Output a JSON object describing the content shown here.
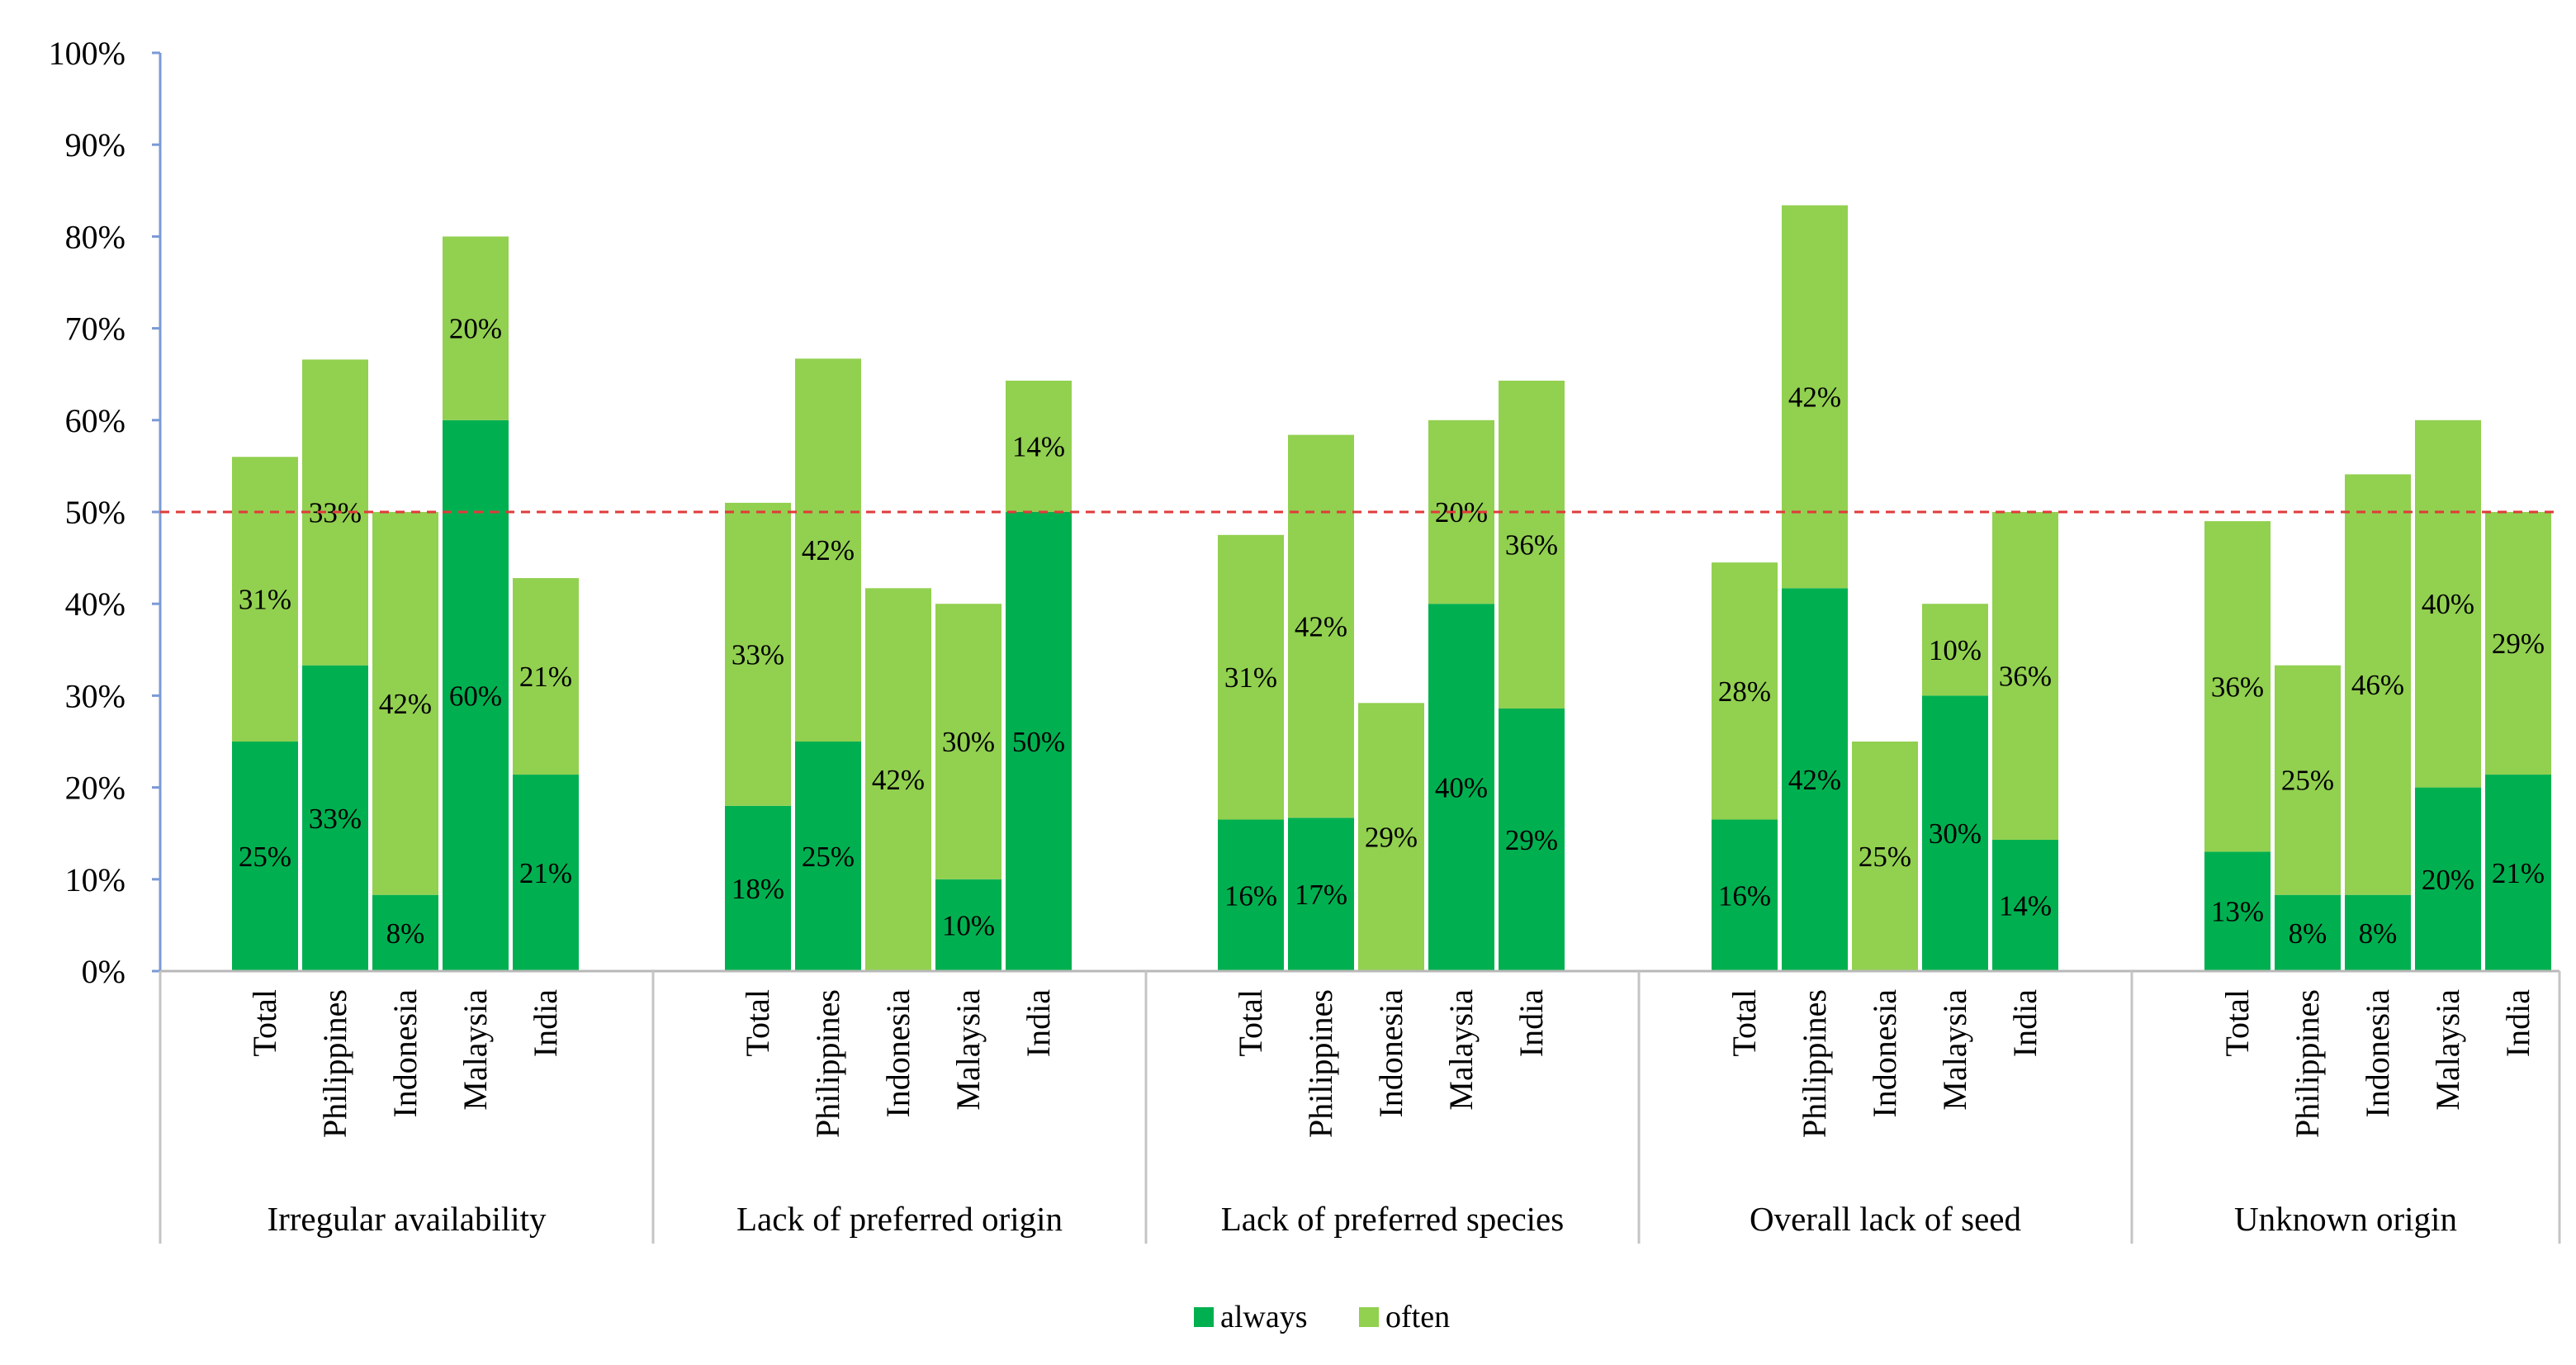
{
  "chart_data": {
    "type": "bar",
    "stacked": true,
    "ylim": [
      0,
      100
    ],
    "yticks": [
      "0%",
      "10%",
      "20%",
      "30%",
      "40%",
      "50%",
      "60%",
      "70%",
      "80%",
      "90%",
      "100%"
    ],
    "reference_line": {
      "value": 50,
      "style": "dashed",
      "color": "#e03a3a"
    },
    "colors": {
      "always": "#00b050",
      "often": "#92d050"
    },
    "legend": {
      "position": "bottom",
      "entries": [
        "always",
        "often"
      ]
    },
    "groups": [
      {
        "name": "Irregular availability",
        "categories": [
          "Total",
          "Philippines",
          "Indonesia",
          "Malaysia",
          "India"
        ],
        "always": [
          25,
          33.3,
          8.3,
          60,
          21.4
        ],
        "often": [
          31,
          33.3,
          41.7,
          20,
          21.4
        ],
        "always_labels": [
          "25%",
          "33%",
          "8%",
          "60%",
          "21%"
        ],
        "often_labels": [
          "31%",
          "33%",
          "42%",
          "20%",
          "21%"
        ]
      },
      {
        "name": "Lack of preferred origin",
        "categories": [
          "Total",
          "Philippines",
          "Indonesia",
          "Malaysia",
          "India"
        ],
        "always": [
          18,
          25,
          0,
          10,
          50
        ],
        "often": [
          33,
          41.7,
          41.7,
          30,
          14.3
        ],
        "always_labels": [
          "18%",
          "25%",
          "",
          "10%",
          "50%"
        ],
        "often_labels": [
          "33%",
          "42%",
          "42%",
          "30%",
          "14%"
        ]
      },
      {
        "name": "Lack of preferred species",
        "categories": [
          "Total",
          "Philippines",
          "Indonesia",
          "Malaysia",
          "India"
        ],
        "always": [
          16.5,
          16.7,
          0,
          40,
          28.6
        ],
        "often": [
          31,
          41.7,
          29.2,
          20,
          35.7
        ],
        "always_labels": [
          "16%",
          "17%",
          "",
          "40%",
          "29%"
        ],
        "often_labels": [
          "31%",
          "42%",
          "29%",
          "20%",
          "36%"
        ]
      },
      {
        "name": "Overall lack of seed",
        "categories": [
          "Total",
          "Philippines",
          "Indonesia",
          "Malaysia",
          "India"
        ],
        "always": [
          16.5,
          41.7,
          0,
          30,
          14.3
        ],
        "often": [
          28,
          41.7,
          25,
          10,
          35.7
        ],
        "always_labels": [
          "16%",
          "42%",
          "",
          "30%",
          "14%"
        ],
        "often_labels": [
          "28%",
          "42%",
          "25%",
          "10%",
          "36%"
        ]
      },
      {
        "name": "Unknown origin",
        "categories": [
          "Total",
          "Philippines",
          "Indonesia",
          "Malaysia",
          "India"
        ],
        "always": [
          13,
          8.3,
          8.3,
          20,
          21.4
        ],
        "often": [
          36,
          25,
          45.8,
          40,
          28.6
        ],
        "always_labels": [
          "13%",
          "8%",
          "8%",
          "20%",
          "21%"
        ],
        "often_labels": [
          "36%",
          "25%",
          "46%",
          "40%",
          "29%"
        ]
      }
    ]
  }
}
